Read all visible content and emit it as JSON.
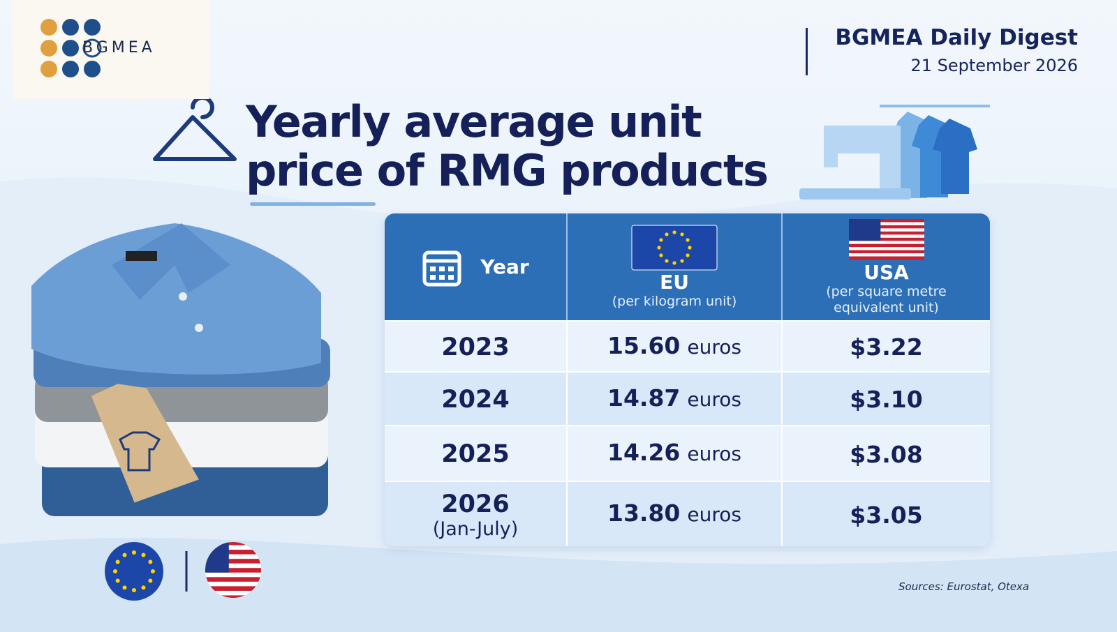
{
  "header": {
    "logo": "BGMEA",
    "digest": "BGMEA Daily Digest",
    "date": "21 September 2026"
  },
  "title": "Yearly average unit price of RMG products",
  "table": {
    "header": {
      "year": "Year",
      "eu": "EU",
      "eu_unit": "(per kilogram unit)",
      "usa": "USA",
      "usa_unit": "(per square metre equivalent unit)"
    },
    "rows": [
      {
        "year": "2023",
        "eu": "15.60",
        "eu_unit": "euros",
        "usa": "$3.22"
      },
      {
        "year": "2024",
        "eu": "14.87",
        "eu_unit": "euros",
        "usa": "$3.10"
      },
      {
        "year": "2025",
        "eu": "14.26",
        "eu_unit": "euros",
        "usa": "$3.08"
      },
      {
        "year": "2026",
        "period": "(Jan-July)",
        "eu": "13.80",
        "eu_unit": "euros",
        "usa": "$3.05"
      }
    ]
  },
  "source": "Sources: Eurostat, Otexa"
}
